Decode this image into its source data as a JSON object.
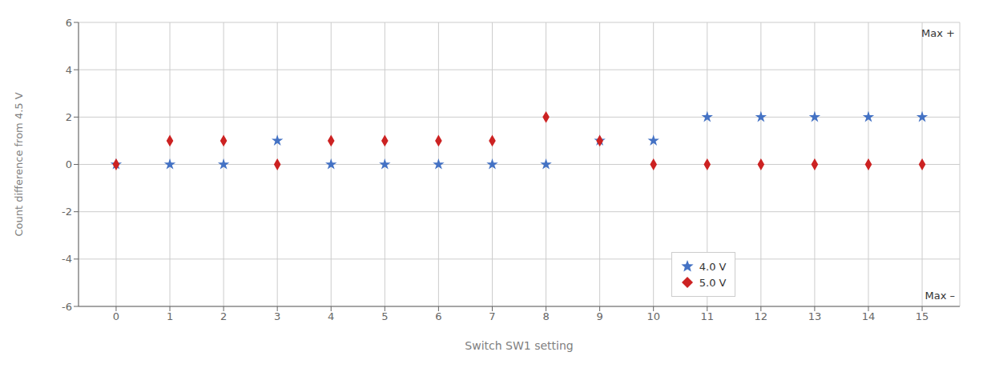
{
  "chart_data": {
    "type": "scatter",
    "x_label": "Switch SW1 setting",
    "y_label": "Count difference from 4.5 V",
    "x": [
      0,
      1,
      2,
      3,
      4,
      5,
      6,
      7,
      8,
      9,
      10,
      11,
      12,
      13,
      14,
      15
    ],
    "series": [
      {
        "name": "4.0 V",
        "color": "#4472C4",
        "marker": "star",
        "values": [
          0,
          0,
          0,
          1,
          0,
          0,
          0,
          0,
          0,
          1,
          1,
          2,
          2,
          2,
          2,
          2
        ]
      },
      {
        "name": "5.0 V",
        "color": "#CC2222",
        "marker": "diamond",
        "values": [
          0,
          1,
          1,
          0,
          1,
          1,
          1,
          1,
          2,
          1,
          0,
          0,
          0,
          0,
          0,
          0
        ]
      }
    ],
    "xlim": [
      -0.7,
      15.7
    ],
    "xticks": [
      0,
      1,
      2,
      3,
      4,
      5,
      6,
      7,
      8,
      9,
      10,
      11,
      12,
      13,
      14,
      15
    ],
    "ylim": [
      -6,
      6
    ],
    "yticks": [
      -6,
      -4,
      -2,
      0,
      2,
      4,
      6
    ],
    "grid": true,
    "legend": "lower right",
    "annotations": [
      "Max +",
      "Max –"
    ]
  }
}
